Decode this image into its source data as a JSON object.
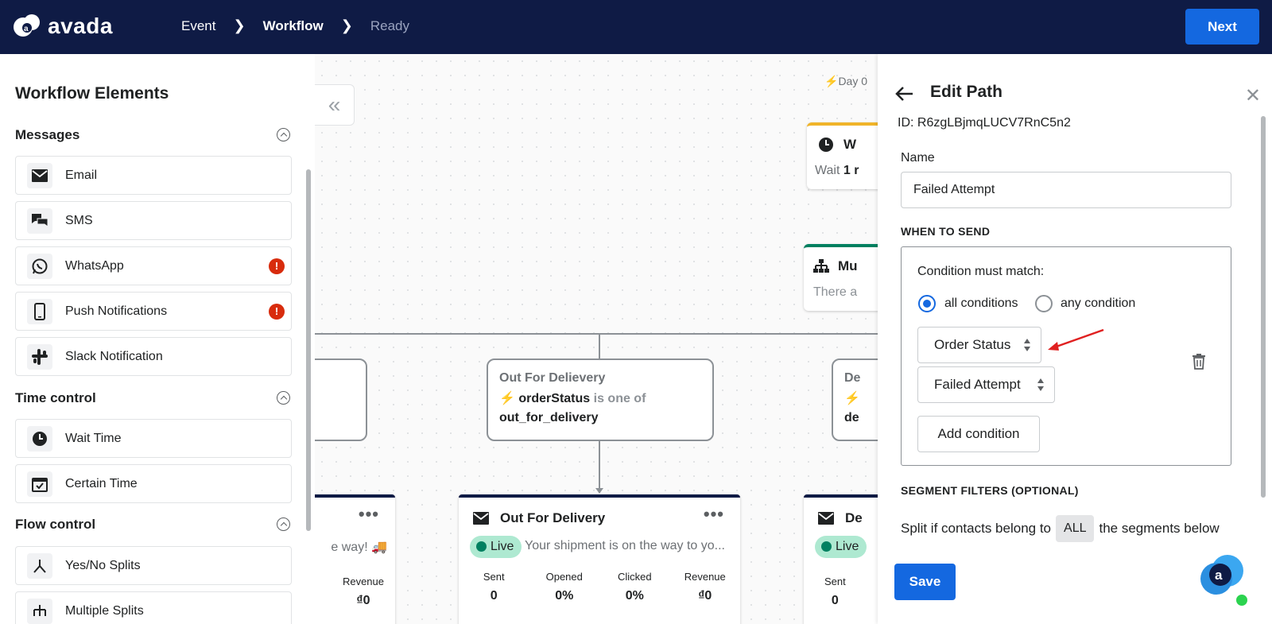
{
  "topbar": {
    "logo_text": "avada",
    "breadcrumbs": [
      {
        "label": "Event"
      },
      {
        "label": "Workflow"
      },
      {
        "label": "Ready"
      }
    ],
    "next_label": "Next"
  },
  "sidebar": {
    "title": "Workflow Elements",
    "sections": {
      "messages": "Messages",
      "time": "Time control",
      "flow": "Flow control"
    },
    "items": {
      "email": "Email",
      "sms": "SMS",
      "whatsapp": "WhatsApp",
      "push": "Push Notifications",
      "slack": "Slack Notification",
      "wait": "Wait Time",
      "certain": "Certain Time",
      "yesno": "Yes/No Splits",
      "multi": "Multiple Splits"
    }
  },
  "canvas": {
    "day_label": "Day 0",
    "wait_card": {
      "title": "W",
      "text_prefix": "Wait ",
      "text_bold": "1 r"
    },
    "multi_card": {
      "title": "Mu",
      "text": "There a"
    },
    "condition_center": {
      "title": "Out For Delievery",
      "field": "orderStatus",
      "op": "is one of",
      "value": "out_for_delivery"
    },
    "condition_right": {
      "title": "De",
      "value": "de"
    },
    "email_left": {
      "preview": "e way! 🚚",
      "stat_label": "Revenue",
      "stat_value": "₫0"
    },
    "email_center": {
      "title": "Out For Delivery",
      "status": "Live",
      "preview": "Your shipment is on the way to yo...",
      "stats": [
        {
          "label": "Sent",
          "value": "0"
        },
        {
          "label": "Opened",
          "value": "0%"
        },
        {
          "label": "Clicked",
          "value": "0%"
        },
        {
          "label": "Revenue",
          "value": "₫0"
        }
      ]
    },
    "email_right": {
      "title": "De",
      "status": "Live",
      "stat_label": "Sent",
      "stat_value": "0"
    }
  },
  "panel": {
    "title": "Edit Path",
    "id_text": "ID: R6zgLBjmqLUCV7RnC5n2",
    "name_label": "Name",
    "name_value": "Failed Attempt",
    "when_heading": "WHEN TO SEND",
    "condition_label": "Condition must match:",
    "radio_all": "all conditions",
    "radio_any": "any condition",
    "select_field": "Order Status",
    "select_value": "Failed Attempt",
    "add_condition": "Add condition",
    "segment_heading": "SEGMENT FILTERS (OPTIONAL)",
    "split_prefix": "Split if contacts belong to",
    "split_badge": "ALL",
    "split_suffix": "the segments below",
    "save_label": "Save"
  },
  "colors": {
    "topbar": "#0f1b45",
    "primary": "#1468e0",
    "live_bg": "#aee9d1",
    "annotation_arrow": "#e02020"
  }
}
